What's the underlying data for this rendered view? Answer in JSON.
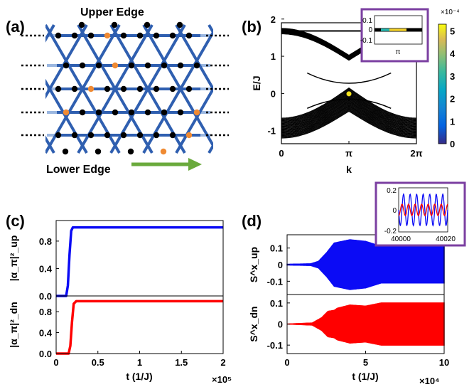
{
  "labels": {
    "panel_a": "(a)",
    "panel_b": "(b)",
    "panel_c": "(c)",
    "panel_d": "(d)",
    "upper_edge": "Upper Edge",
    "lower_edge": "Lower Edge"
  },
  "colors": {
    "lattice_dark": "#2f5fb0",
    "lattice_light": "#9bb7e0",
    "site_black": "#000000",
    "site_orange": "#ef8a33",
    "arrow_green": "#6aaa3c",
    "inset_frame": "#7b3fa1",
    "curve_up": "#0b0bf5",
    "curve_dn": "#ff0000"
  },
  "chart_data": [
    {
      "id": "b",
      "type": "line",
      "xlabel": "k",
      "ylabel": "E/J",
      "xticks": [
        "0",
        "π",
        "2π"
      ],
      "yticks": [
        "-1",
        "0",
        "1",
        "2"
      ],
      "ylim": [
        -1.35,
        1.9
      ],
      "xlim": [
        0,
        6.283
      ],
      "description_series": "black band structure of kagome strip, many bulk bands plus edge states",
      "highlight_point": {
        "x": 3.1416,
        "y": -0.01
      },
      "colorbar": {
        "ticks": [
          "0",
          "1",
          "2",
          "3",
          "4",
          "5"
        ],
        "exponent": "×10⁻⁴",
        "range": [
          0,
          5.3
        ]
      },
      "inset": {
        "yticks": [
          "0.1",
          "0",
          "-0.1"
        ],
        "xtick": "π",
        "ylim": [
          -0.15,
          0.15
        ]
      }
    },
    {
      "id": "c",
      "type": "line",
      "xlabel": "t (1/J)",
      "x_exponent": "×10⁵",
      "xticks": [
        "0",
        "0.5",
        "1",
        "1.5",
        "2"
      ],
      "xlim": [
        0,
        2
      ],
      "top": {
        "ylabel": "|α_π|²_up",
        "yticks": [
          "0.0",
          "0.4",
          "0.8"
        ],
        "ylim": [
          0,
          1.1
        ],
        "x": [
          0,
          0.12,
          0.14,
          0.16,
          0.18,
          0.2,
          2.0
        ],
        "y": [
          0,
          0,
          0.15,
          0.6,
          0.95,
          1.0,
          1.0
        ]
      },
      "bottom": {
        "ylabel": "|α_π|²_dn",
        "yticks": [
          "0.0",
          "0.4",
          "0.8"
        ],
        "ylim": [
          0,
          1.1
        ],
        "x": [
          0,
          0.15,
          0.17,
          0.19,
          0.21,
          0.24,
          2.0
        ],
        "y": [
          0,
          0,
          0.15,
          0.6,
          0.95,
          1.0,
          1.0
        ]
      }
    },
    {
      "id": "d",
      "type": "area",
      "xlabel": "t (1/J)",
      "x_exponent": "×10⁴",
      "xticks": [
        "0",
        "5",
        "10"
      ],
      "xlim": [
        0,
        10
      ],
      "top": {
        "ylabel": "S^x_up",
        "yticks": [
          "0.1",
          "0",
          "-0.1"
        ],
        "ylim": [
          -0.18,
          0.18
        ],
        "envelope_t": [
          0,
          1.5,
          2.0,
          2.5,
          3.0,
          4.0,
          5.0,
          6.0,
          10.0
        ],
        "envelope_amp": [
          0.002,
          0.005,
          0.02,
          0.07,
          0.13,
          0.15,
          0.14,
          0.11,
          0.11
        ]
      },
      "bottom": {
        "ylabel": "S^x_dn",
        "yticks": [
          "0.1",
          "0",
          "-0.1"
        ],
        "ylim": [
          -0.14,
          0.14
        ],
        "envelope_t": [
          0,
          1.6,
          2.2,
          2.6,
          3.0,
          3.2,
          4.0,
          5.0,
          6.0,
          10.0
        ],
        "envelope_amp": [
          0.0,
          0.005,
          0.03,
          0.06,
          0.065,
          0.075,
          0.09,
          0.085,
          0.1,
          0.1
        ]
      },
      "inset": {
        "xticks": [
          "40000",
          "40020"
        ],
        "yticks": [
          "0.2",
          "0",
          "-0.2"
        ]
      }
    }
  ]
}
